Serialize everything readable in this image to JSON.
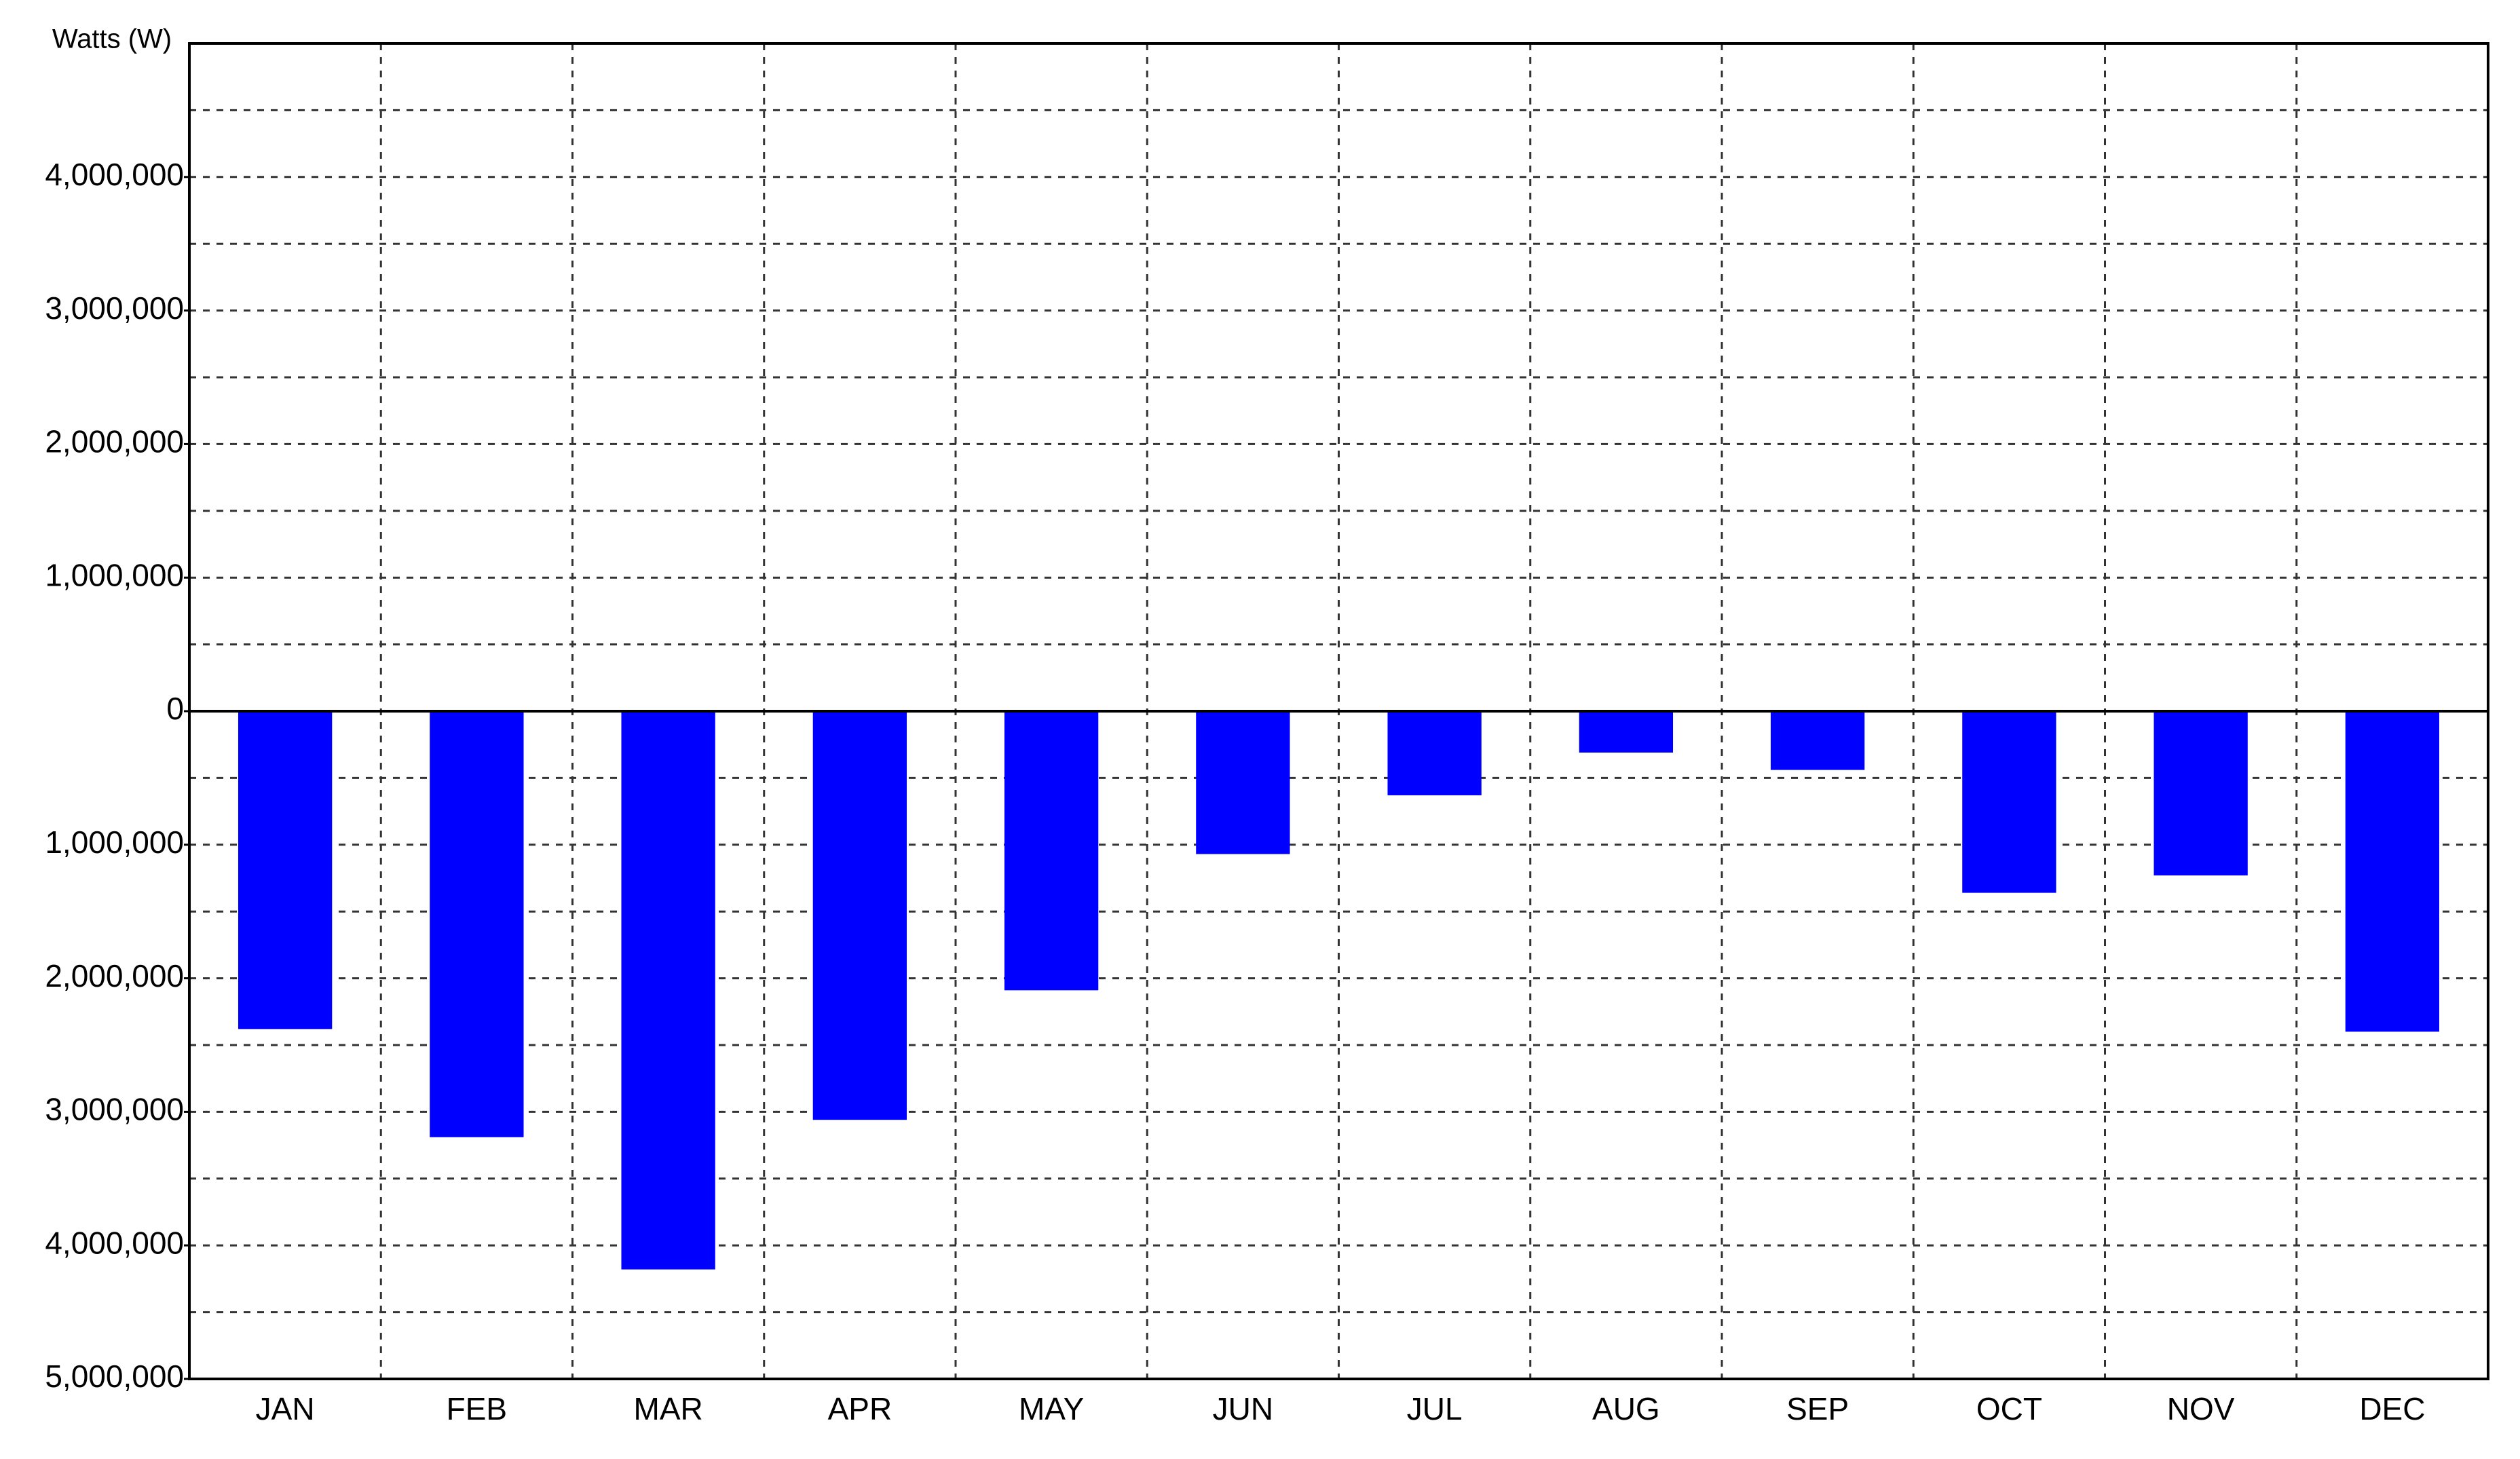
{
  "chart_data": {
    "type": "bar",
    "y_label": "Watts (W)",
    "categories": [
      "JAN",
      "FEB",
      "MAR",
      "APR",
      "MAY",
      "JUN",
      "JUL",
      "AUG",
      "SEP",
      "OCT",
      "NOV",
      "DEC"
    ],
    "values": [
      -2380000,
      -3190000,
      -4180000,
      -3060000,
      -2090000,
      -1070000,
      -630000,
      -310000,
      -440000,
      -1360000,
      -1230000,
      -2400000
    ],
    "color": "#0000ff",
    "ylim": [
      -5000000,
      5000000
    ],
    "yticks": [
      {
        "value": 4000000,
        "label": "4,000,000"
      },
      {
        "value": 3000000,
        "label": "3,000,000"
      },
      {
        "value": 2000000,
        "label": "2,000,000"
      },
      {
        "value": 1000000,
        "label": "1,000,000"
      },
      0,
      {
        "value": -1000000,
        "label": "1,000,000"
      },
      {
        "value": -2000000,
        "label": "2,000,000"
      },
      {
        "value": -3000000,
        "label": "3,000,000"
      },
      {
        "value": -4000000,
        "label": "4,000,000"
      },
      {
        "value": -5000000,
        "label": "5,000,000"
      }
    ],
    "grid": true
  }
}
